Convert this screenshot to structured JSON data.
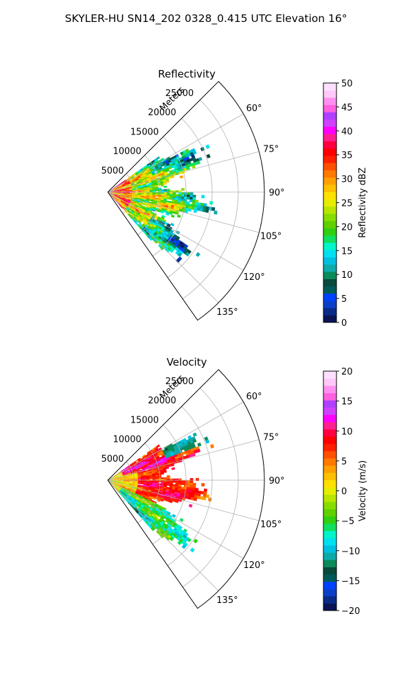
{
  "figure": {
    "title": "SKYLER-HU  SN14_202  0328_0.415 UTC Elevation 16°"
  },
  "chart_data": [
    {
      "type": "heatmap",
      "subtype": "polar-sector-radar-ppi",
      "title": "Reflectivity",
      "radial_axis_label": "Meters",
      "r_ticks": [
        5000,
        10000,
        15000,
        20000,
        25000
      ],
      "r_tick_labels": [
        "5000",
        "10000",
        "15000",
        "20000",
        "25000"
      ],
      "rlim": [
        0,
        30000
      ],
      "angle_ticks_deg": [
        60,
        75,
        90,
        105,
        120,
        135
      ],
      "angle_tick_labels": [
        "60°",
        "75°",
        "90°",
        "105°",
        "120°",
        "135°"
      ],
      "azimuth_range_deg": [
        45,
        145
      ],
      "grid": true,
      "echo_extent": {
        "max_range_m": 17500,
        "azimuth_deg": [
          55,
          137
        ]
      },
      "colorbar": {
        "label": "Reflectivity dBZ",
        "range": [
          0,
          50
        ],
        "ticks": [
          0,
          5,
          10,
          15,
          20,
          25,
          30,
          35,
          40,
          45,
          50
        ],
        "tick_labels": [
          "0",
          "5",
          "10",
          "15",
          "20",
          "25",
          "30",
          "35",
          "40",
          "45",
          "50"
        ],
        "colors": [
          "#0a1455",
          "#0a2a88",
          "#0b3fc8",
          "#0040ff",
          "#005a5a",
          "#0a4a3a",
          "#0b8a5a",
          "#0eaaaa",
          "#00c0e0",
          "#00e0f0",
          "#00f5c8",
          "#10e060",
          "#30d010",
          "#60d000",
          "#88dd00",
          "#b8e600",
          "#e6ee00",
          "#ffe000",
          "#ffc000",
          "#ffa000",
          "#ff7a00",
          "#ff5000",
          "#ff2000",
          "#ff0000",
          "#ff0040",
          "#ff2090",
          "#ff00ff",
          "#d040ff",
          "#b040ff",
          "#ff60e0",
          "#ff90f0",
          "#ffc8f8",
          "#ffe0ff"
        ]
      }
    },
    {
      "type": "heatmap",
      "subtype": "polar-sector-radar-ppi",
      "title": "Velocity",
      "radial_axis_label": "Meters",
      "r_ticks": [
        5000,
        10000,
        15000,
        20000,
        25000
      ],
      "r_tick_labels": [
        "5000",
        "10000",
        "15000",
        "20000",
        "25000"
      ],
      "rlim": [
        0,
        30000
      ],
      "angle_ticks_deg": [
        60,
        75,
        90,
        105,
        120,
        135
      ],
      "angle_tick_labels": [
        "60°",
        "75°",
        "90°",
        "105°",
        "120°",
        "135°"
      ],
      "azimuth_range_deg": [
        45,
        145
      ],
      "grid": true,
      "echo_extent": {
        "max_range_m": 17500,
        "azimuth_deg": [
          55,
          137
        ]
      },
      "colorbar": {
        "label": "Velocity (m/s)",
        "range": [
          -20,
          20
        ],
        "ticks": [
          -20,
          -15,
          -10,
          -5,
          0,
          5,
          10,
          15,
          20
        ],
        "tick_labels": [
          "−20",
          "−15",
          "−10",
          "−5",
          "0",
          "5",
          "10",
          "15",
          "20"
        ],
        "colors": [
          "#0a1455",
          "#0a2a88",
          "#0b3fc8",
          "#0040ff",
          "#005a5a",
          "#0a4a3a",
          "#0b8a5a",
          "#0eaaaa",
          "#00c0e0",
          "#00e0f0",
          "#00f5c8",
          "#10e060",
          "#30d010",
          "#60d000",
          "#88dd00",
          "#b8e600",
          "#e6ee00",
          "#ffe000",
          "#ffc000",
          "#ffa000",
          "#ff7a00",
          "#ff5000",
          "#ff2000",
          "#ff0000",
          "#ff0040",
          "#ff2090",
          "#ff00ff",
          "#d040ff",
          "#b040ff",
          "#ff60e0",
          "#ff90f0",
          "#ffc8f8",
          "#ffe0ff"
        ]
      }
    }
  ]
}
